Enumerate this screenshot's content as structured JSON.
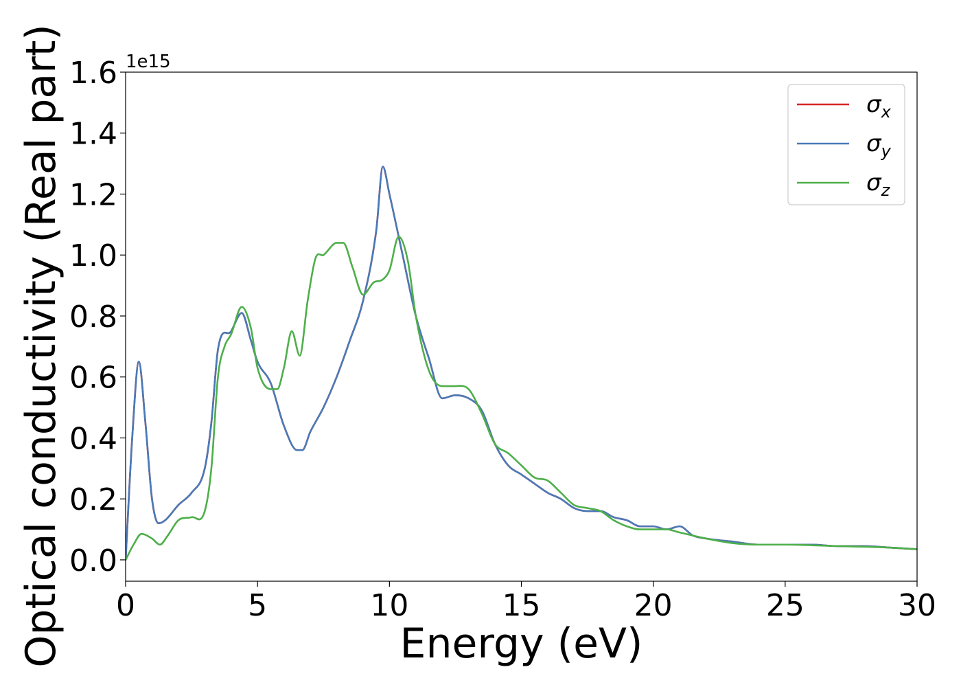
{
  "chart_data": {
    "type": "line",
    "title": "",
    "xlabel": "Energy (eV)",
    "ylabel": "Optical conductivity (Real part)",
    "y_offset_text": "1e15",
    "y_scale": 1000000000000000.0,
    "xlim": [
      0,
      30
    ],
    "ylim": [
      -0.07,
      1.6
    ],
    "xticks": [
      0,
      5,
      10,
      15,
      20,
      25,
      30
    ],
    "xtick_labels": [
      "0",
      "5",
      "10",
      "15",
      "20",
      "25",
      "30"
    ],
    "yticks": [
      0.0,
      0.2,
      0.4,
      0.6,
      0.8,
      1.0,
      1.2,
      1.4,
      1.6
    ],
    "ytick_labels": [
      "0.0",
      "0.2",
      "0.4",
      "0.6",
      "0.8",
      "1.0",
      "1.2",
      "1.4",
      "1.6"
    ],
    "grid": false,
    "legend_position": "top-right",
    "series": [
      {
        "name": "σx",
        "label_base": "σ",
        "label_sub": "x",
        "color": "#d62728",
        "x": [
          0,
          0.25,
          0.5,
          0.75,
          1.0,
          1.25,
          1.5,
          2.0,
          2.5,
          3.0,
          3.25,
          3.5,
          4.0,
          4.4,
          4.75,
          5.0,
          5.5,
          6.0,
          6.5,
          6.7,
          7.0,
          7.5,
          8.0,
          8.5,
          9.0,
          9.5,
          9.75,
          10.0,
          10.5,
          11.0,
          11.5,
          12.0,
          12.5,
          13.0,
          13.5,
          14.0,
          14.5,
          15.0,
          15.5,
          16.0,
          16.5,
          17.0,
          17.5,
          18.0,
          18.5,
          19.0,
          19.5,
          20.0,
          20.5,
          21.0,
          21.5,
          22.0,
          23.0,
          24.0,
          25.0,
          26.0,
          27.0,
          28.0,
          29.0,
          30.0
        ],
        "y": [
          0.0,
          0.4,
          0.65,
          0.45,
          0.2,
          0.12,
          0.13,
          0.18,
          0.22,
          0.3,
          0.45,
          0.69,
          0.75,
          0.81,
          0.72,
          0.65,
          0.58,
          0.44,
          0.36,
          0.36,
          0.42,
          0.5,
          0.6,
          0.72,
          0.85,
          1.08,
          1.29,
          1.2,
          1.0,
          0.8,
          0.66,
          0.53,
          0.54,
          0.53,
          0.49,
          0.38,
          0.31,
          0.28,
          0.25,
          0.22,
          0.2,
          0.17,
          0.16,
          0.16,
          0.14,
          0.13,
          0.11,
          0.11,
          0.1,
          0.11,
          0.08,
          0.07,
          0.06,
          0.05,
          0.05,
          0.05,
          0.045,
          0.045,
          0.04,
          0.035
        ]
      },
      {
        "name": "σy",
        "label_base": "σ",
        "label_sub": "y",
        "color": "#4a7ab8",
        "x": [
          0,
          0.25,
          0.5,
          0.75,
          1.0,
          1.25,
          1.5,
          2.0,
          2.5,
          3.0,
          3.25,
          3.5,
          4.0,
          4.4,
          4.75,
          5.0,
          5.5,
          6.0,
          6.5,
          6.7,
          7.0,
          7.5,
          8.0,
          8.5,
          9.0,
          9.5,
          9.75,
          10.0,
          10.5,
          11.0,
          11.5,
          12.0,
          12.5,
          13.0,
          13.5,
          14.0,
          14.5,
          15.0,
          15.5,
          16.0,
          16.5,
          17.0,
          17.5,
          18.0,
          18.5,
          19.0,
          19.5,
          20.0,
          20.5,
          21.0,
          21.5,
          22.0,
          23.0,
          24.0,
          25.0,
          26.0,
          27.0,
          28.0,
          29.0,
          30.0
        ],
        "y": [
          0.0,
          0.4,
          0.65,
          0.45,
          0.2,
          0.12,
          0.13,
          0.18,
          0.22,
          0.3,
          0.45,
          0.69,
          0.75,
          0.81,
          0.72,
          0.65,
          0.58,
          0.44,
          0.36,
          0.36,
          0.42,
          0.5,
          0.6,
          0.72,
          0.85,
          1.08,
          1.29,
          1.2,
          1.0,
          0.8,
          0.66,
          0.53,
          0.54,
          0.53,
          0.49,
          0.38,
          0.31,
          0.28,
          0.25,
          0.22,
          0.2,
          0.17,
          0.16,
          0.16,
          0.14,
          0.13,
          0.11,
          0.11,
          0.1,
          0.11,
          0.08,
          0.07,
          0.06,
          0.05,
          0.05,
          0.05,
          0.045,
          0.045,
          0.04,
          0.035
        ]
      },
      {
        "name": "σz",
        "label_base": "σ",
        "label_sub": "z",
        "color": "#4daf4a",
        "x": [
          0,
          0.3,
          0.6,
          1.0,
          1.3,
          1.6,
          2.0,
          2.5,
          3.0,
          3.25,
          3.5,
          3.75,
          4.0,
          4.4,
          4.75,
          5.0,
          5.5,
          5.75,
          6.0,
          6.3,
          6.6,
          6.9,
          7.2,
          7.5,
          8.0,
          8.25,
          8.6,
          9.0,
          9.4,
          9.75,
          10.0,
          10.35,
          10.7,
          11.0,
          11.5,
          12.0,
          12.5,
          13.0,
          13.5,
          14.0,
          14.5,
          15.0,
          15.5,
          16.0,
          16.5,
          17.0,
          17.5,
          18.0,
          18.5,
          19.0,
          19.5,
          20.0,
          20.5,
          21.0,
          22.0,
          23.0,
          24.0,
          25.0,
          26.0,
          27.0,
          28.0,
          29.0,
          30.0
        ],
        "y": [
          0.0,
          0.05,
          0.085,
          0.07,
          0.05,
          0.08,
          0.13,
          0.14,
          0.16,
          0.3,
          0.6,
          0.7,
          0.74,
          0.83,
          0.76,
          0.63,
          0.56,
          0.56,
          0.63,
          0.75,
          0.67,
          0.85,
          0.99,
          1.0,
          1.04,
          1.04,
          0.96,
          0.87,
          0.91,
          0.92,
          0.95,
          1.06,
          0.98,
          0.8,
          0.62,
          0.57,
          0.57,
          0.56,
          0.48,
          0.38,
          0.35,
          0.31,
          0.27,
          0.26,
          0.22,
          0.18,
          0.17,
          0.16,
          0.13,
          0.11,
          0.1,
          0.1,
          0.1,
          0.09,
          0.07,
          0.055,
          0.05,
          0.05,
          0.048,
          0.045,
          0.043,
          0.04,
          0.035
        ]
      }
    ]
  }
}
